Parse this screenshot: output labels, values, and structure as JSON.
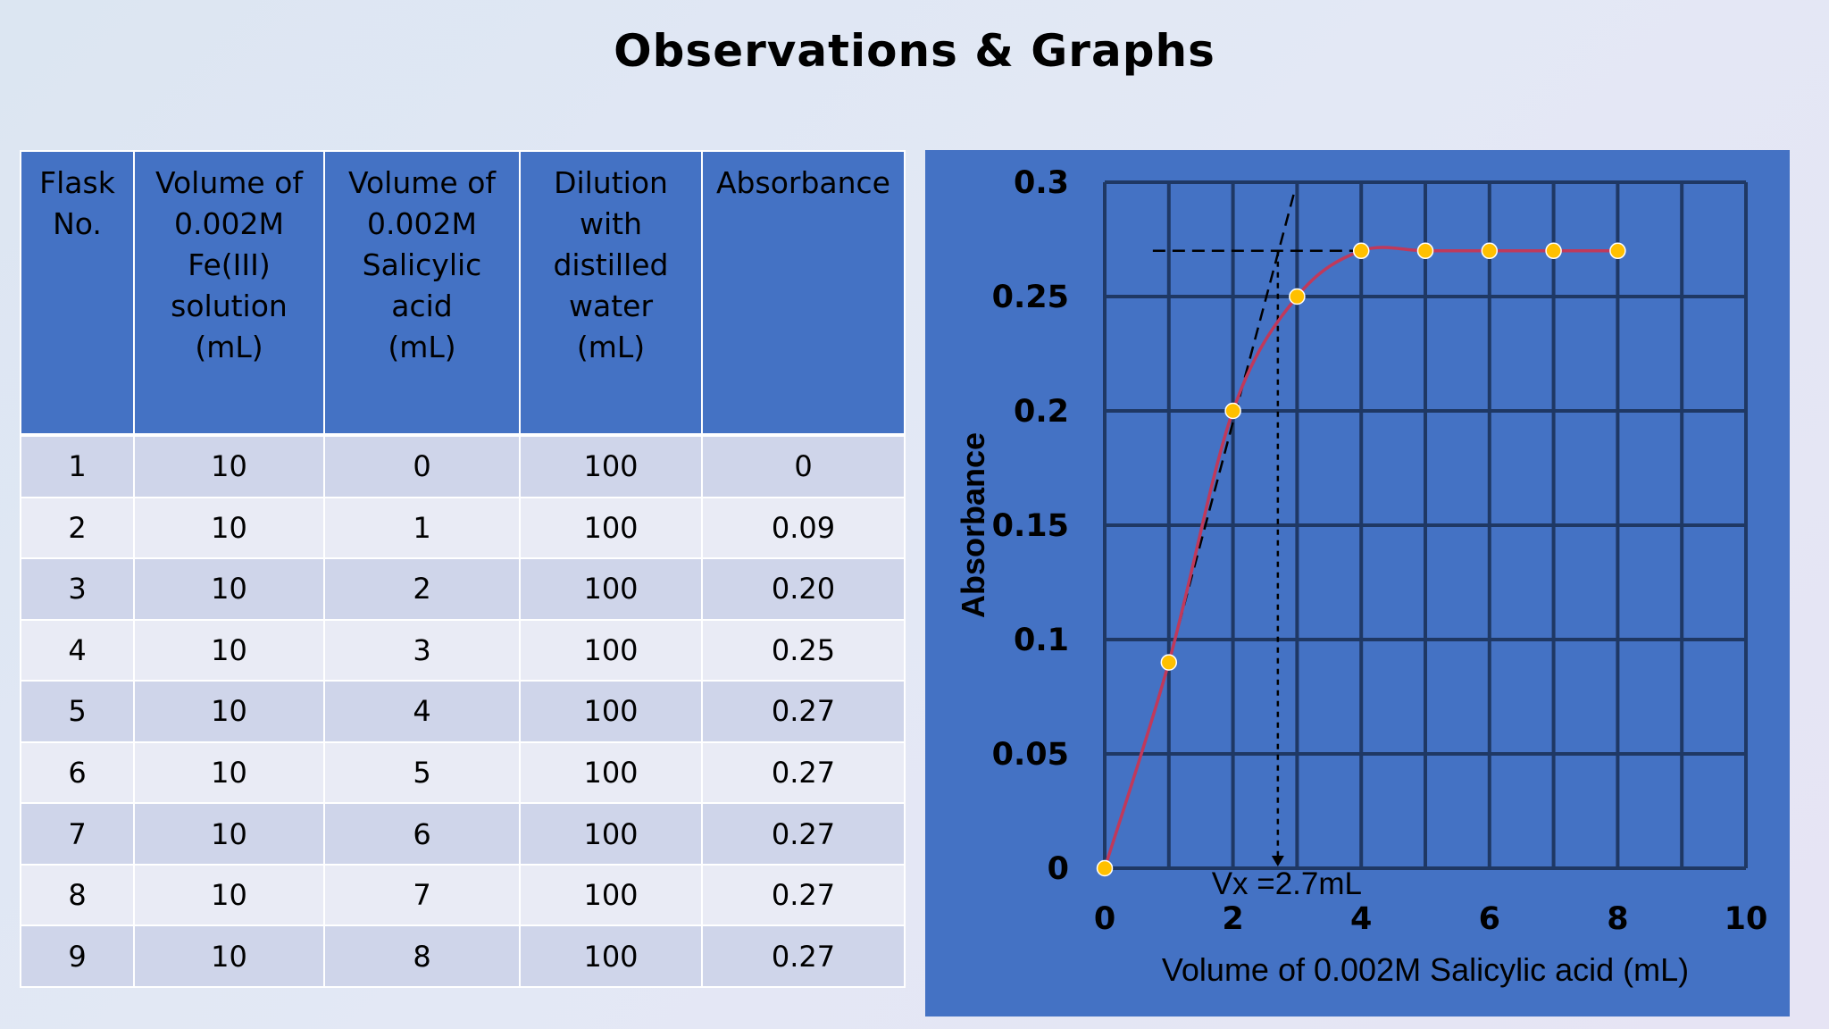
{
  "title": "Observations & Graphs",
  "table": {
    "headers": [
      [
        "Flask",
        "No."
      ],
      [
        "Volume of",
        "0.002M",
        "Fe(III)",
        "solution",
        "(mL)"
      ],
      [
        "Volume of",
        "0.002M",
        "Salicylic",
        "acid",
        "(mL)"
      ],
      [
        "Dilution",
        "with",
        "distilled",
        "water",
        "(mL)"
      ],
      [
        "Absorbance"
      ]
    ],
    "rows": [
      [
        "1",
        "10",
        "0",
        "100",
        "0"
      ],
      [
        "2",
        "10",
        "1",
        "100",
        "0.09"
      ],
      [
        "3",
        "10",
        "2",
        "100",
        "0.20"
      ],
      [
        "4",
        "10",
        "3",
        "100",
        "0.25"
      ],
      [
        "5",
        "10",
        "4",
        "100",
        "0.27"
      ],
      [
        "6",
        "10",
        "5",
        "100",
        "0.27"
      ],
      [
        "7",
        "10",
        "6",
        "100",
        "0.27"
      ],
      [
        "8",
        "10",
        "7",
        "100",
        "0.27"
      ],
      [
        "9",
        "10",
        "8",
        "100",
        "0.27"
      ]
    ]
  },
  "chart_data": {
    "type": "scatter",
    "title": "",
    "xlabel": "Volume of 0.002M Salicylic acid (mL)",
    "ylabel": "Absorbance",
    "xlim": [
      0,
      10
    ],
    "ylim": [
      0,
      0.3
    ],
    "xticks": [
      "0",
      "2",
      "4",
      "6",
      "8",
      "10"
    ],
    "yticks": [
      "0",
      "0.05",
      "0.1",
      "0.15",
      "0.2",
      "0.25",
      "0.3"
    ],
    "grid": true,
    "x": [
      0,
      1,
      2,
      3,
      4,
      5,
      6,
      7,
      8
    ],
    "y": [
      0,
      0.09,
      0.2,
      0.25,
      0.27,
      0.27,
      0.27,
      0.27,
      0.27
    ],
    "smooth_curve": true,
    "tangent_lines": {
      "plateau": {
        "from": [
          0.75,
          0.27
        ],
        "to": [
          4,
          0.27
        ]
      },
      "slope": {
        "from": [
          1,
          0.09
        ],
        "to": [
          2.95,
          0.295
        ]
      }
    },
    "intersection": {
      "x": 2.7,
      "y": 0.27,
      "label": "Vx =2.7mL"
    },
    "colors": {
      "background": "#4472c4",
      "grid": "#1f3864",
      "curve": "#c0395b",
      "marker": "#ffc000"
    }
  }
}
